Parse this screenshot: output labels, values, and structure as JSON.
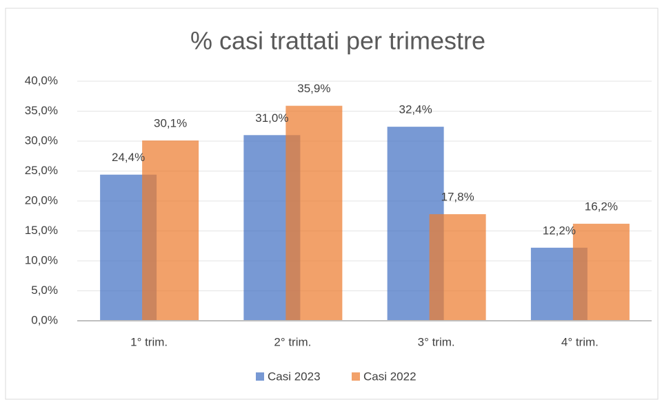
{
  "chart_data": {
    "type": "bar",
    "title": "% casi trattati per trimestre",
    "categories": [
      "1° trim.",
      "2° trim.",
      "3° trim.",
      "4° trim."
    ],
    "series": [
      {
        "name": "Casi 2023",
        "color": "#4472c4",
        "values": [
          24.4,
          31.0,
          32.4,
          12.2
        ],
        "value_labels": [
          "24,4%",
          "31,0%",
          "32,4%",
          "12,2%"
        ]
      },
      {
        "name": "Casi 2022",
        "color": "#ed7d31",
        "values": [
          30.1,
          35.9,
          17.8,
          16.2
        ],
        "value_labels": [
          "30,1%",
          "35,9%",
          "17,8%",
          "16,2%"
        ]
      }
    ],
    "ylim": [
      0,
      40
    ],
    "yticks": [
      {
        "value": 0,
        "label": "0,0%"
      },
      {
        "value": 5,
        "label": "5,0%"
      },
      {
        "value": 10,
        "label": "10,0%"
      },
      {
        "value": 15,
        "label": "15,0%"
      },
      {
        "value": 20,
        "label": "20,0%"
      },
      {
        "value": 25,
        "label": "25,0%"
      },
      {
        "value": 30,
        "label": "30,0%"
      },
      {
        "value": 35,
        "label": "35,0%"
      },
      {
        "value": 40,
        "label": "40,0%"
      }
    ],
    "grid": true,
    "legend": "bottom"
  }
}
